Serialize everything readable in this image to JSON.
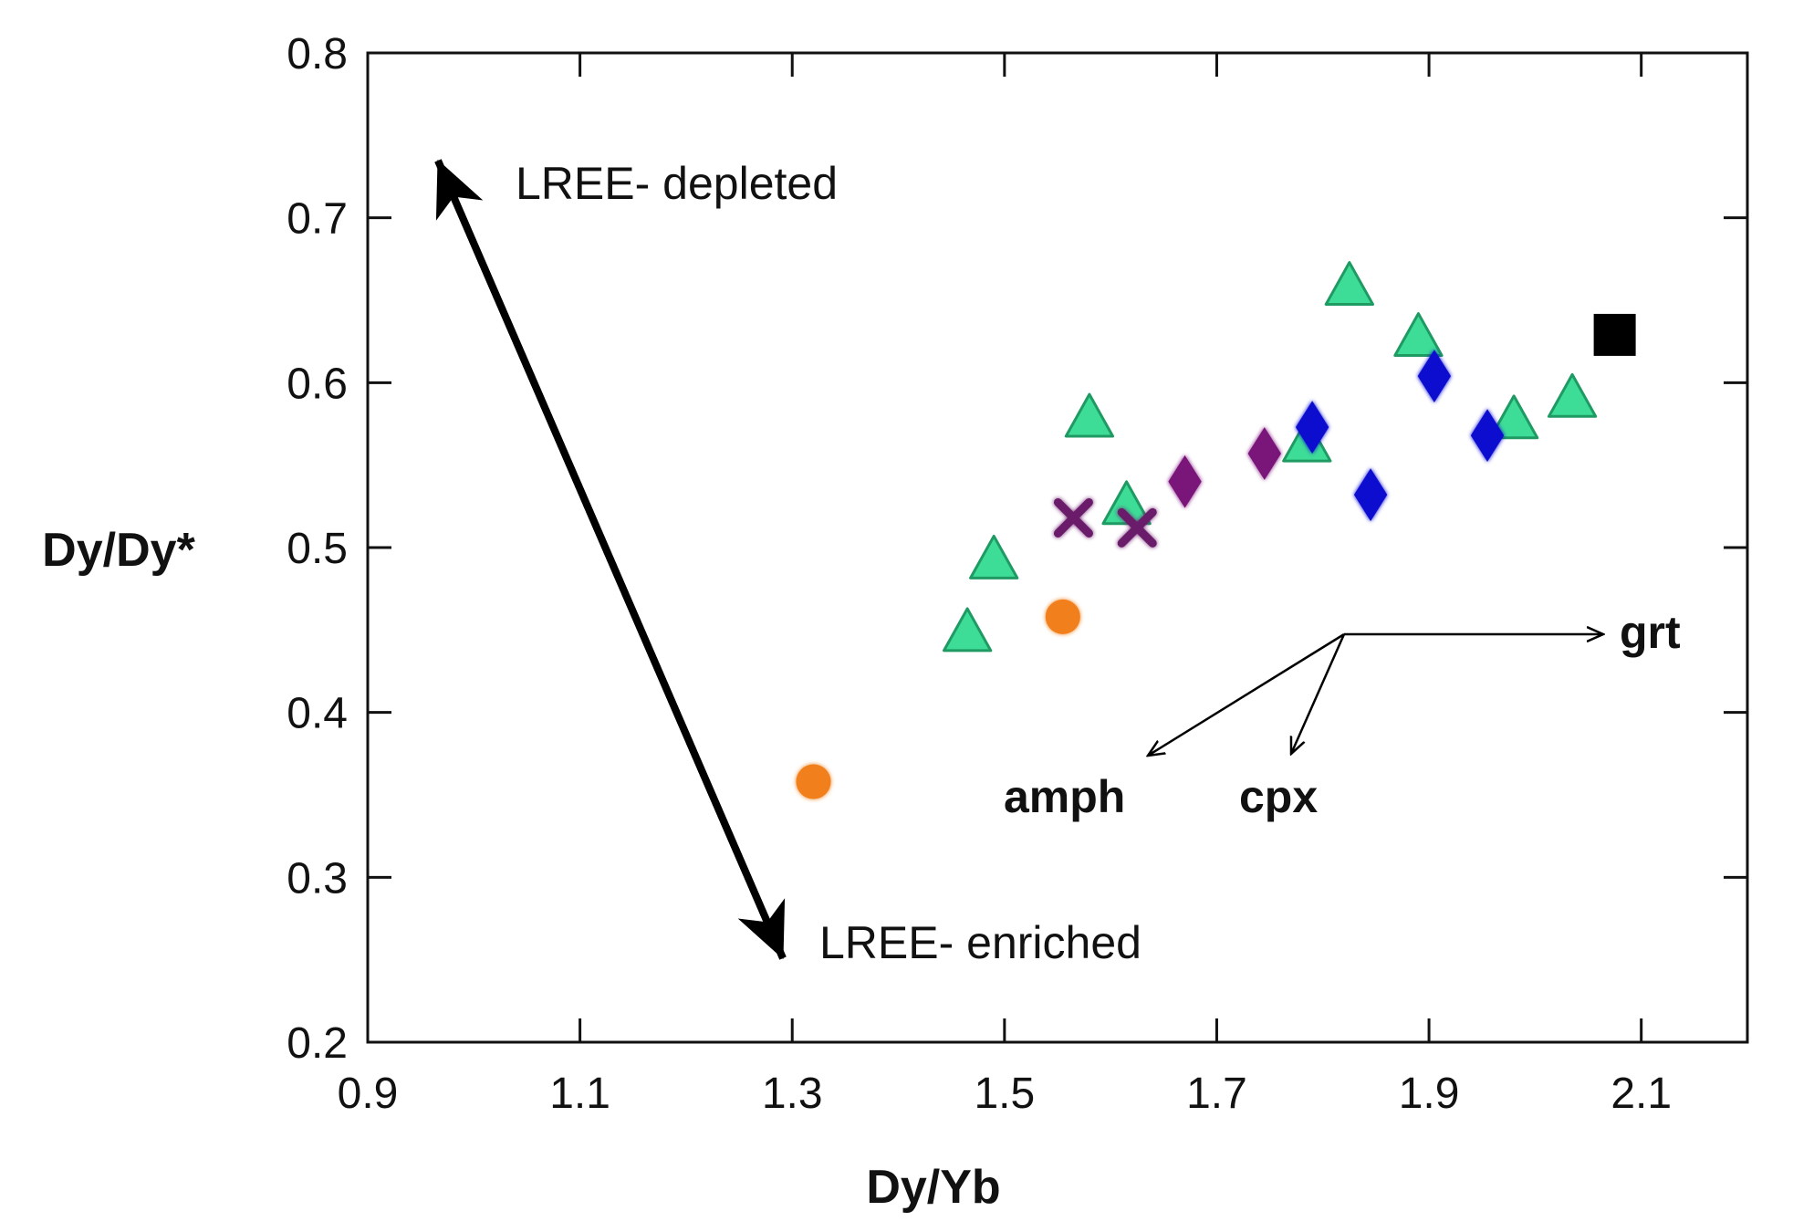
{
  "chart_data": {
    "type": "scatter",
    "title": "",
    "xlabel": "Dy/Yb",
    "ylabel": "Dy/Dy*",
    "xlim": [
      0.9,
      2.2
    ],
    "ylim": [
      0.2,
      0.8
    ],
    "x_ticks": [
      "0.9",
      "1.1",
      "1.3",
      "1.5",
      "1.7",
      "1.9",
      "2.1"
    ],
    "y_ticks": [
      "0.2",
      "0.3",
      "0.4",
      "0.5",
      "0.6",
      "0.7",
      "0.8"
    ],
    "series": [
      {
        "name": "triangles",
        "marker": "triangle",
        "color": "#3ddc97",
        "points": [
          [
            1.465,
            0.448
          ],
          [
            1.49,
            0.492
          ],
          [
            1.58,
            0.578
          ],
          [
            1.615,
            0.525
          ],
          [
            1.785,
            0.563
          ],
          [
            1.825,
            0.658
          ],
          [
            1.89,
            0.627
          ],
          [
            1.98,
            0.577
          ],
          [
            2.035,
            0.59
          ]
        ]
      },
      {
        "name": "blue diamonds",
        "marker": "diamond",
        "color": "#1010d0",
        "points": [
          [
            1.79,
            0.573
          ],
          [
            1.845,
            0.532
          ],
          [
            1.905,
            0.604
          ],
          [
            1.955,
            0.568
          ]
        ]
      },
      {
        "name": "purple diamonds",
        "marker": "diamond",
        "color": "#7a127a",
        "points": [
          [
            1.67,
            0.54
          ],
          [
            1.745,
            0.557
          ]
        ]
      },
      {
        "name": "purple crosses",
        "marker": "cross",
        "color": "#6a1a6a",
        "points": [
          [
            1.565,
            0.518
          ],
          [
            1.625,
            0.512
          ]
        ]
      },
      {
        "name": "orange circles",
        "marker": "circle",
        "color": "#f07f1a",
        "points": [
          [
            1.32,
            0.358
          ],
          [
            1.555,
            0.458
          ]
        ]
      },
      {
        "name": "black square",
        "marker": "square",
        "color": "#000000",
        "points": [
          [
            2.075,
            0.629
          ]
        ]
      }
    ],
    "annotations": {
      "lree_depleted": "LREE- depleted",
      "lree_enriched": "LREE- enriched",
      "grt": "grt",
      "amph": "amph",
      "cpx": "cpx"
    }
  }
}
